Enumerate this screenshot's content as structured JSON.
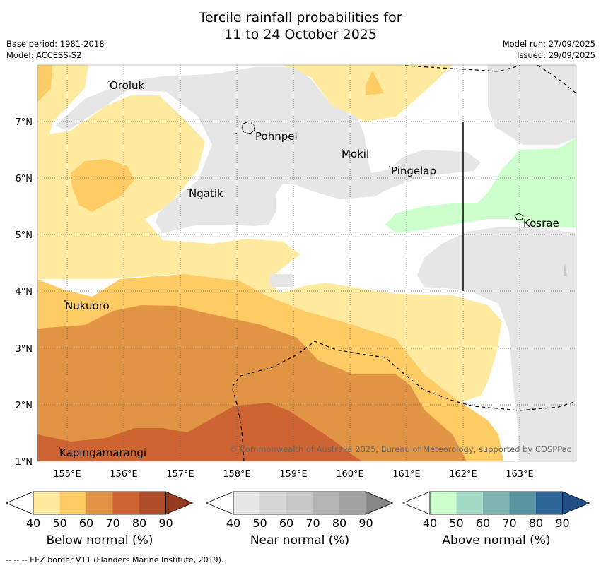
{
  "title": {
    "line1": "Tercile rainfall probabilities for",
    "line2": "11 to 24 October 2025"
  },
  "meta": {
    "base_period": "Base period: 1981-2018",
    "model": "Model: ACCESS-S2",
    "model_run": "Model run: 27/09/2025",
    "issued": "Issued: 29/09/2025"
  },
  "map": {
    "lon_ticks": [
      "155°E",
      "156°E",
      "157°E",
      "158°E",
      "159°E",
      "160°E",
      "161°E",
      "162°E",
      "163°E"
    ],
    "lat_ticks": [
      "1°N",
      "2°N",
      "3°N",
      "4°N",
      "5°N",
      "6°N",
      "7°N"
    ],
    "places": [
      "Oroluk",
      "Pohnpei",
      "Mokil",
      "Pingelap",
      "Ngatik",
      "Kosrae",
      "Nukuoro",
      "Kapingamarangi"
    ],
    "copyright": "© Commonwealth of Australia 2025, Bureau of Meteorology, supported by COSPPac"
  },
  "colorbars": {
    "ticks": [
      "40",
      "50",
      "60",
      "70",
      "80",
      "90"
    ],
    "below": {
      "label": "Below normal (%)",
      "colors": [
        "#ffffff",
        "#ffeaa0",
        "#fecb65",
        "#e09444",
        "#ce6432",
        "#af4d2a",
        "#953b22"
      ]
    },
    "near": {
      "label": "Near normal (%)",
      "colors": [
        "#ffffff",
        "#e6e6e6",
        "#d6d6d6",
        "#c7c7c7",
        "#b4b4b4",
        "#a2a2a2",
        "#878787"
      ]
    },
    "above": {
      "label": "Above normal (%)",
      "colors": [
        "#ffffff",
        "#ccffcc",
        "#a2d9c4",
        "#7fb5b0",
        "#5a93a2",
        "#2e6699",
        "#204f86"
      ]
    }
  },
  "footnote": "-- -- -- EEZ border V11 (Flanders Marine Institute, 2019)."
}
